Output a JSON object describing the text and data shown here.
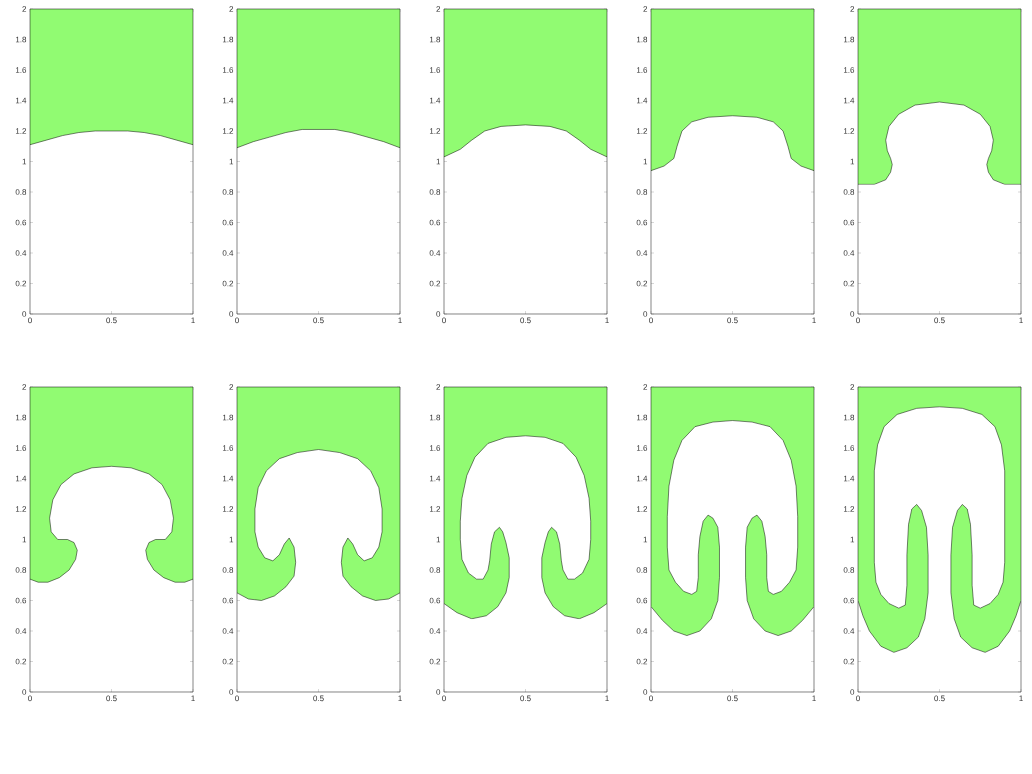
{
  "chart_data": [
    {
      "type": "area",
      "color": "#91fb72",
      "xlim": [
        0,
        1
      ],
      "ylim": [
        0,
        2
      ],
      "xticks": [
        0,
        0.5,
        1
      ],
      "yticks": [
        0,
        0.2,
        0.4,
        0.6,
        0.8,
        1,
        1.2,
        1.4,
        1.6,
        1.8,
        2
      ],
      "grid": false,
      "x": [
        0,
        0.1,
        0.2,
        0.3,
        0.4,
        0.5,
        0.6,
        0.7,
        0.8,
        0.9,
        1,
        1,
        0
      ],
      "values": [
        1.11,
        1.14,
        1.17,
        1.19,
        1.2,
        1.2,
        1.2,
        1.19,
        1.17,
        1.14,
        1.11,
        2,
        2
      ]
    },
    {
      "type": "area",
      "color": "#91fb72",
      "xlim": [
        0,
        1
      ],
      "ylim": [
        0,
        2
      ],
      "xticks": [
        0,
        0.5,
        1
      ],
      "yticks": [
        0,
        0.2,
        0.4,
        0.6,
        0.8,
        1,
        1.2,
        1.4,
        1.6,
        1.8,
        2
      ],
      "grid": false,
      "x": [
        0,
        0.1,
        0.2,
        0.3,
        0.4,
        0.5,
        0.6,
        0.7,
        0.8,
        0.9,
        1,
        1,
        0
      ],
      "values": [
        1.09,
        1.13,
        1.16,
        1.19,
        1.21,
        1.21,
        1.21,
        1.19,
        1.16,
        1.13,
        1.09,
        2,
        2
      ]
    },
    {
      "type": "area",
      "color": "#91fb72",
      "xlim": [
        0,
        1
      ],
      "ylim": [
        0,
        2
      ],
      "xticks": [
        0,
        0.5,
        1
      ],
      "yticks": [
        0,
        0.2,
        0.4,
        0.6,
        0.8,
        1,
        1.2,
        1.4,
        1.6,
        1.8,
        2
      ],
      "grid": false,
      "x": [
        0,
        0.1,
        0.17,
        0.25,
        0.35,
        0.5,
        0.65,
        0.75,
        0.83,
        0.9,
        1,
        1,
        0
      ],
      "values": [
        1.03,
        1.08,
        1.14,
        1.2,
        1.23,
        1.24,
        1.23,
        1.2,
        1.14,
        1.08,
        1.03,
        2,
        2
      ]
    },
    {
      "type": "area",
      "color": "#91fb72",
      "xlim": [
        0,
        1
      ],
      "ylim": [
        0,
        2
      ],
      "xticks": [
        0,
        0.5,
        1
      ],
      "yticks": [
        0,
        0.2,
        0.4,
        0.6,
        0.8,
        1,
        1.2,
        1.4,
        1.6,
        1.8,
        2
      ],
      "grid": false,
      "x": [
        0,
        0.08,
        0.14,
        0.16,
        0.19,
        0.25,
        0.35,
        0.5,
        0.65,
        0.75,
        0.81,
        0.84,
        0.86,
        0.92,
        1,
        1,
        0
      ],
      "values": [
        0.94,
        0.97,
        1.02,
        1.1,
        1.2,
        1.26,
        1.29,
        1.3,
        1.29,
        1.26,
        1.2,
        1.1,
        1.02,
        0.97,
        0.94,
        2,
        2
      ]
    },
    {
      "type": "area",
      "color": "#91fb72",
      "xlim": [
        0,
        1
      ],
      "ylim": [
        0,
        2
      ],
      "xticks": [
        0,
        0.5,
        1
      ],
      "yticks": [
        0,
        0.2,
        0.4,
        0.6,
        0.8,
        1,
        1.2,
        1.4,
        1.6,
        1.8,
        2
      ],
      "grid": false,
      "x": [
        0,
        0.1,
        0.17,
        0.2,
        0.21,
        0.2,
        0.18,
        0.17,
        0.19,
        0.25,
        0.35,
        0.5,
        0.65,
        0.75,
        0.81,
        0.83,
        0.82,
        0.8,
        0.79,
        0.8,
        0.83,
        0.9,
        1,
        1,
        0
      ],
      "values": [
        0.85,
        0.85,
        0.88,
        0.93,
        0.98,
        1.02,
        1.07,
        1.14,
        1.23,
        1.31,
        1.37,
        1.39,
        1.37,
        1.31,
        1.23,
        1.14,
        1.07,
        1.02,
        0.98,
        0.93,
        0.88,
        0.85,
        0.85,
        2,
        2
      ]
    },
    {
      "type": "area",
      "color": "#91fb72",
      "xlim": [
        0,
        1
      ],
      "ylim": [
        0,
        2
      ],
      "xticks": [
        0,
        0.5,
        1
      ],
      "yticks": [
        0,
        0.2,
        0.4,
        0.6,
        0.8,
        1,
        1.2,
        1.4,
        1.6,
        1.8,
        2
      ],
      "grid": false,
      "x": [
        0,
        0.05,
        0.11,
        0.18,
        0.24,
        0.28,
        0.29,
        0.27,
        0.23,
        0.17,
        0.13,
        0.12,
        0.14,
        0.19,
        0.27,
        0.38,
        0.5,
        0.62,
        0.73,
        0.81,
        0.86,
        0.88,
        0.87,
        0.83,
        0.77,
        0.73,
        0.71,
        0.72,
        0.76,
        0.82,
        0.89,
        0.95,
        1,
        1,
        0
      ],
      "values": [
        0.74,
        0.72,
        0.72,
        0.75,
        0.8,
        0.87,
        0.93,
        0.98,
        1,
        1,
        1.05,
        1.14,
        1.26,
        1.36,
        1.43,
        1.47,
        1.48,
        1.47,
        1.43,
        1.36,
        1.26,
        1.14,
        1.05,
        1,
        1,
        0.98,
        0.93,
        0.87,
        0.8,
        0.75,
        0.72,
        0.72,
        0.74,
        2,
        2
      ]
    },
    {
      "type": "area",
      "color": "#91fb72",
      "xlim": [
        0,
        1
      ],
      "ylim": [
        0,
        2
      ],
      "xticks": [
        0,
        0.5,
        1
      ],
      "yticks": [
        0,
        0.2,
        0.4,
        0.6,
        0.8,
        1,
        1.2,
        1.4,
        1.6,
        1.8,
        2
      ],
      "grid": false,
      "x": [
        0,
        0.07,
        0.15,
        0.23,
        0.3,
        0.35,
        0.36,
        0.35,
        0.32,
        0.29,
        0.26,
        0.22,
        0.17,
        0.13,
        0.11,
        0.11,
        0.13,
        0.18,
        0.26,
        0.37,
        0.5,
        0.63,
        0.74,
        0.82,
        0.87,
        0.89,
        0.89,
        0.87,
        0.83,
        0.78,
        0.74,
        0.71,
        0.68,
        0.65,
        0.64,
        0.65,
        0.7,
        0.77,
        0.85,
        0.93,
        1,
        1,
        0
      ],
      "values": [
        0.65,
        0.61,
        0.6,
        0.63,
        0.69,
        0.76,
        0.85,
        0.95,
        1.01,
        0.97,
        0.9,
        0.86,
        0.88,
        0.95,
        1.05,
        1.2,
        1.34,
        1.45,
        1.53,
        1.57,
        1.59,
        1.57,
        1.53,
        1.45,
        1.34,
        1.2,
        1.05,
        0.95,
        0.88,
        0.86,
        0.9,
        0.97,
        1.01,
        0.95,
        0.85,
        0.76,
        0.69,
        0.63,
        0.6,
        0.61,
        0.65,
        2,
        2
      ]
    },
    {
      "type": "area",
      "color": "#91fb72",
      "xlim": [
        0,
        1
      ],
      "ylim": [
        0,
        2
      ],
      "xticks": [
        0,
        0.5,
        1
      ],
      "yticks": [
        0,
        0.2,
        0.4,
        0.6,
        0.8,
        1,
        1.2,
        1.4,
        1.6,
        1.8,
        2
      ],
      "grid": false,
      "x": [
        0,
        0.08,
        0.17,
        0.26,
        0.33,
        0.38,
        0.4,
        0.4,
        0.38,
        0.36,
        0.34,
        0.31,
        0.29,
        0.28,
        0.27,
        0.24,
        0.2,
        0.15,
        0.11,
        0.1,
        0.1,
        0.11,
        0.14,
        0.19,
        0.27,
        0.38,
        0.5,
        0.62,
        0.73,
        0.81,
        0.86,
        0.89,
        0.9,
        0.9,
        0.89,
        0.85,
        0.8,
        0.76,
        0.73,
        0.72,
        0.71,
        0.69,
        0.66,
        0.64,
        0.62,
        0.6,
        0.6,
        0.62,
        0.67,
        0.74,
        0.83,
        0.92,
        1,
        1,
        0
      ],
      "values": [
        0.58,
        0.52,
        0.48,
        0.5,
        0.56,
        0.65,
        0.75,
        0.88,
        0.98,
        1.05,
        1.08,
        1.05,
        0.97,
        0.86,
        0.8,
        0.74,
        0.74,
        0.78,
        0.87,
        1,
        1.12,
        1.27,
        1.42,
        1.54,
        1.63,
        1.67,
        1.68,
        1.67,
        1.63,
        1.54,
        1.42,
        1.27,
        1.12,
        1,
        0.87,
        0.78,
        0.74,
        0.74,
        0.8,
        0.86,
        0.97,
        1.05,
        1.08,
        1.05,
        0.98,
        0.88,
        0.75,
        0.65,
        0.56,
        0.5,
        0.48,
        0.52,
        0.58,
        2,
        2
      ]
    },
    {
      "type": "area",
      "color": "#91fb72",
      "xlim": [
        0,
        1
      ],
      "ylim": [
        0,
        2
      ],
      "xticks": [
        0,
        0.5,
        1
      ],
      "yticks": [
        0,
        0.2,
        0.4,
        0.6,
        0.8,
        1,
        1.2,
        1.4,
        1.6,
        1.8,
        2
      ],
      "grid": false,
      "x": [
        0,
        0.07,
        0.14,
        0.22,
        0.3,
        0.37,
        0.41,
        0.42,
        0.42,
        0.41,
        0.38,
        0.35,
        0.32,
        0.3,
        0.29,
        0.29,
        0.28,
        0.25,
        0.2,
        0.15,
        0.11,
        0.1,
        0.1,
        0.11,
        0.14,
        0.19,
        0.27,
        0.38,
        0.5,
        0.62,
        0.73,
        0.81,
        0.86,
        0.89,
        0.9,
        0.9,
        0.89,
        0.85,
        0.8,
        0.75,
        0.72,
        0.71,
        0.71,
        0.7,
        0.68,
        0.65,
        0.62,
        0.59,
        0.58,
        0.58,
        0.59,
        0.63,
        0.7,
        0.78,
        0.86,
        0.93,
        1,
        1,
        0
      ],
      "values": [
        0.56,
        0.47,
        0.4,
        0.37,
        0.4,
        0.48,
        0.6,
        0.75,
        0.95,
        1.08,
        1.14,
        1.16,
        1.12,
        1.02,
        0.9,
        0.75,
        0.66,
        0.64,
        0.66,
        0.72,
        0.8,
        0.95,
        1.15,
        1.35,
        1.52,
        1.65,
        1.74,
        1.77,
        1.78,
        1.77,
        1.74,
        1.65,
        1.52,
        1.35,
        1.15,
        0.95,
        0.8,
        0.72,
        0.66,
        0.64,
        0.66,
        0.75,
        0.9,
        1.02,
        1.12,
        1.16,
        1.14,
        1.08,
        0.95,
        0.75,
        0.6,
        0.48,
        0.4,
        0.37,
        0.4,
        0.47,
        0.56,
        2,
        2
      ]
    },
    {
      "type": "area",
      "color": "#91fb72",
      "xlim": [
        0,
        1
      ],
      "ylim": [
        0,
        2
      ],
      "xticks": [
        0,
        0.5,
        1
      ],
      "yticks": [
        0,
        0.2,
        0.4,
        0.6,
        0.8,
        1,
        1.2,
        1.4,
        1.6,
        1.8,
        2
      ],
      "grid": false,
      "x": [
        0,
        0.03,
        0.07,
        0.14,
        0.22,
        0.3,
        0.37,
        0.41,
        0.43,
        0.43,
        0.42,
        0.39,
        0.36,
        0.33,
        0.31,
        0.3,
        0.3,
        0.29,
        0.25,
        0.19,
        0.14,
        0.11,
        0.1,
        0.1,
        0.12,
        0.16,
        0.24,
        0.36,
        0.5,
        0.64,
        0.76,
        0.84,
        0.88,
        0.9,
        0.9,
        0.89,
        0.86,
        0.81,
        0.75,
        0.71,
        0.7,
        0.7,
        0.69,
        0.67,
        0.64,
        0.61,
        0.58,
        0.57,
        0.57,
        0.59,
        0.63,
        0.7,
        0.78,
        0.86,
        0.93,
        0.97,
        1,
        1,
        0
      ],
      "values": [
        0.6,
        0.5,
        0.4,
        0.3,
        0.26,
        0.29,
        0.36,
        0.48,
        0.65,
        0.9,
        1.08,
        1.19,
        1.23,
        1.2,
        1.1,
        0.9,
        0.7,
        0.57,
        0.55,
        0.58,
        0.64,
        0.72,
        0.85,
        1.45,
        1.62,
        1.74,
        1.82,
        1.86,
        1.87,
        1.86,
        1.82,
        1.74,
        1.62,
        1.45,
        0.85,
        0.72,
        0.64,
        0.58,
        0.55,
        0.57,
        0.7,
        0.9,
        1.1,
        1.2,
        1.23,
        1.19,
        1.08,
        0.9,
        0.65,
        0.48,
        0.36,
        0.29,
        0.26,
        0.3,
        0.4,
        0.5,
        0.6,
        2,
        2
      ]
    }
  ]
}
